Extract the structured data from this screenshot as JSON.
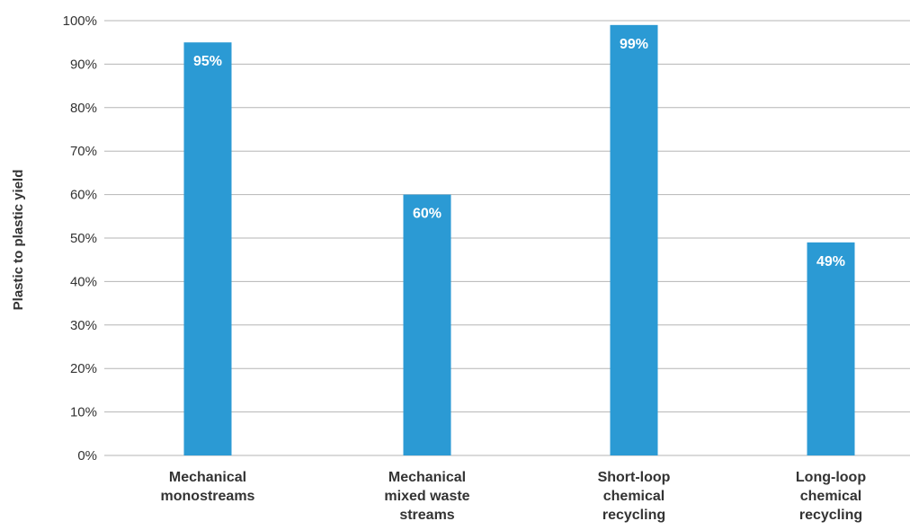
{
  "chart_data": {
    "type": "bar",
    "categories": [
      [
        "Mechanical",
        "monostreams"
      ],
      [
        "Mechanical",
        "mixed waste",
        "streams"
      ],
      [
        "Short-loop",
        "chemical",
        "recycling"
      ],
      [
        "Long-loop",
        "chemical",
        "recycling"
      ]
    ],
    "values": [
      95,
      60,
      99,
      49
    ],
    "data_labels": [
      "95%",
      "60%",
      "99%",
      "49%"
    ],
    "ylabel": "Plastic to plastic yield",
    "ylim": [
      0,
      100
    ],
    "yticks": [
      {
        "value": 0,
        "label": "0%"
      },
      {
        "value": 10,
        "label": "10%"
      },
      {
        "value": 20,
        "label": "20%"
      },
      {
        "value": 30,
        "label": "30%"
      },
      {
        "value": 40,
        "label": "40%"
      },
      {
        "value": 50,
        "label": "50%"
      },
      {
        "value": 60,
        "label": "60%"
      },
      {
        "value": 70,
        "label": "70%"
      },
      {
        "value": 80,
        "label": "80%"
      },
      {
        "value": 90,
        "label": "90%"
      },
      {
        "value": 100,
        "label": "100%"
      }
    ],
    "grid": true,
    "bar_color": "#2b9ad4",
    "grid_color": "#b5b5b5"
  }
}
